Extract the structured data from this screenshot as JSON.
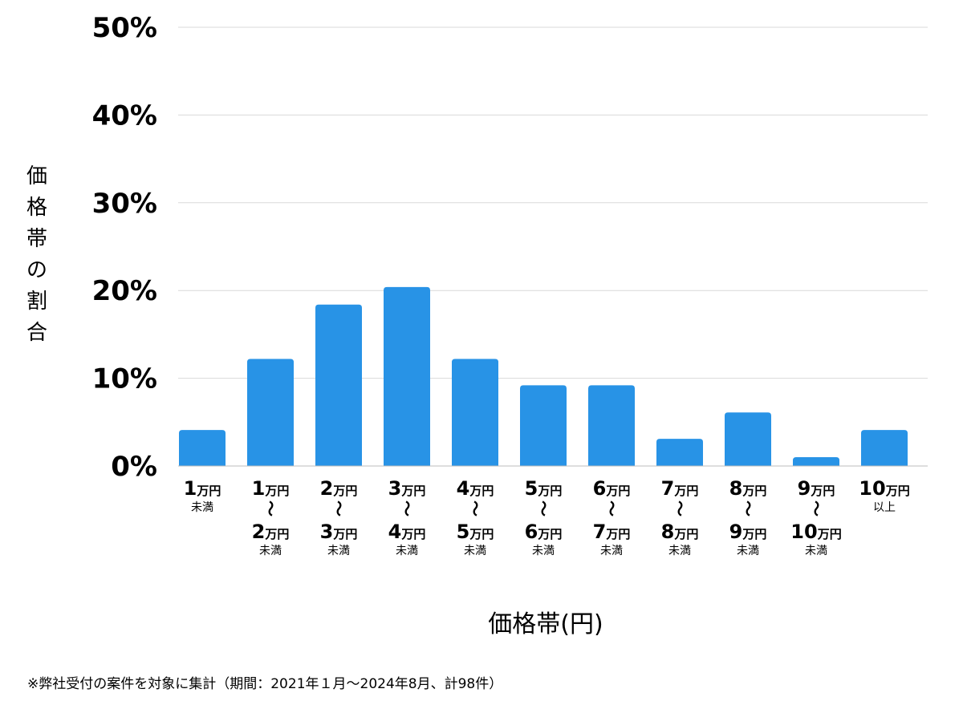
{
  "chart_data": {
    "type": "bar",
    "title": "",
    "xlabel": "価格帯(円)",
    "ylabel": "価格帯の割合",
    "ylim": [
      0,
      50
    ],
    "y_ticks": [
      "0%",
      "10%",
      "20%",
      "30%",
      "40%",
      "50%"
    ],
    "y_tick_values": [
      0,
      10,
      20,
      30,
      40,
      50
    ],
    "grid": true,
    "bar_color": "#2893e6",
    "categories": [
      {
        "lines": [
          {
            "n": "1",
            "u": "万円"
          }
        ],
        "suffix": "未満"
      },
      {
        "lines": [
          {
            "n": "1",
            "u": "万円"
          },
          {
            "n": "2",
            "u": "万円"
          }
        ],
        "tilde": "～",
        "suffix": "未満"
      },
      {
        "lines": [
          {
            "n": "2",
            "u": "万円"
          },
          {
            "n": "3",
            "u": "万円"
          }
        ],
        "tilde": "～",
        "suffix": "未満"
      },
      {
        "lines": [
          {
            "n": "3",
            "u": "万円"
          },
          {
            "n": "4",
            "u": "万円"
          }
        ],
        "tilde": "～",
        "suffix": "未満"
      },
      {
        "lines": [
          {
            "n": "4",
            "u": "万円"
          },
          {
            "n": "5",
            "u": "万円"
          }
        ],
        "tilde": "～",
        "suffix": "未満"
      },
      {
        "lines": [
          {
            "n": "5",
            "u": "万円"
          },
          {
            "n": "6",
            "u": "万円"
          }
        ],
        "tilde": "～",
        "suffix": "未満"
      },
      {
        "lines": [
          {
            "n": "6",
            "u": "万円"
          },
          {
            "n": "7",
            "u": "万円"
          }
        ],
        "tilde": "～",
        "suffix": "未満"
      },
      {
        "lines": [
          {
            "n": "7",
            "u": "万円"
          },
          {
            "n": "8",
            "u": "万円"
          }
        ],
        "tilde": "～",
        "suffix": "未満"
      },
      {
        "lines": [
          {
            "n": "8",
            "u": "万円"
          },
          {
            "n": "9",
            "u": "万円"
          }
        ],
        "tilde": "～",
        "suffix": "未満"
      },
      {
        "lines": [
          {
            "n": "9",
            "u": "万円"
          },
          {
            "n": "10",
            "u": "万円"
          }
        ],
        "tilde": "～",
        "suffix": "未満"
      },
      {
        "lines": [
          {
            "n": "10",
            "u": "万円"
          }
        ],
        "suffix": "以上"
      }
    ],
    "values": [
      4.1,
      12.2,
      18.4,
      20.4,
      12.2,
      9.2,
      9.2,
      3.1,
      6.1,
      1.0,
      4.1
    ]
  },
  "footnote": "※弊社受付の案件を対象に集計（期間：2021年１月〜2024年8月、計98件）"
}
